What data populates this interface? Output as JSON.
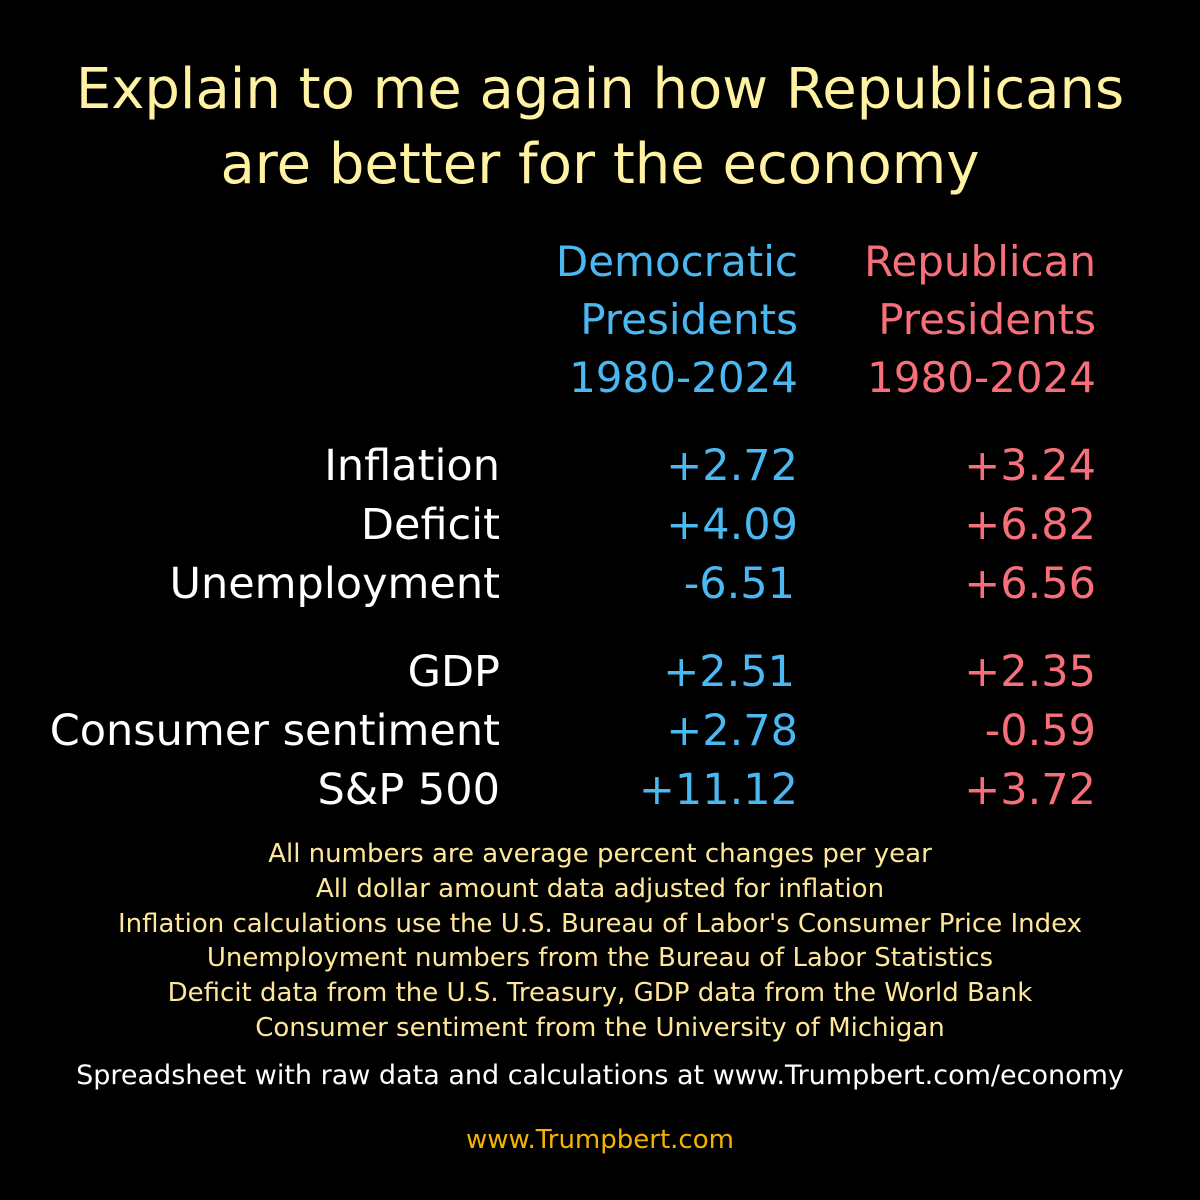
{
  "title": {
    "line1": "Explain to me again how Republicans",
    "line2": "are better for the economy"
  },
  "columns": {
    "democratic": [
      "Democratic",
      "Presidents",
      "1980-2024"
    ],
    "republican": [
      "Republican",
      "Presidents",
      "1980-2024"
    ]
  },
  "rows": [
    {
      "label": "Inflation",
      "dem": "+2.72",
      "rep": "+3.24"
    },
    {
      "label": "Deficit",
      "dem": "+4.09",
      "rep": "+6.82"
    },
    {
      "label": "Unemployment",
      "dem": "-6.51",
      "rep": "+6.56"
    },
    {
      "label": "GDP",
      "dem": "+2.51",
      "rep": "+2.35"
    },
    {
      "label": "Consumer sentiment",
      "dem": "+2.78",
      "rep": "-0.59"
    },
    {
      "label": "S&P 500",
      "dem": "+11.12",
      "rep": "+3.72"
    }
  ],
  "notes": [
    "All numbers are average percent changes per year",
    "All dollar amount data adjusted for inflation",
    "Inflation calculations use the U.S. Bureau of Labor's Consumer Price Index",
    "Unemployment numbers from the Bureau of Labor Statistics",
    "Deficit data from the U.S. Treasury, GDP data from the World Bank",
    "Consumer sentiment from the University of Michigan"
  ],
  "spreadsheet_note": "Spreadsheet with raw data and calculations at www.Trumpbert.com/economy",
  "site": "www.Trumpbert.com",
  "colors": {
    "democratic": "#4cb8f2",
    "republican": "#f76f7a",
    "title": "#fff2a3",
    "site": "#f5b200"
  }
}
